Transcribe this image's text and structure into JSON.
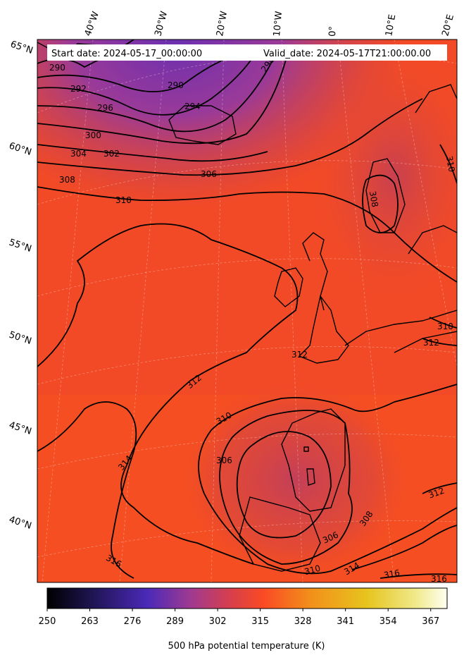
{
  "header": {
    "start_date": "Start date: 2024-05-17_00:00:00",
    "valid_date": "Valid_date: 2024-05-17T21:00:00.00"
  },
  "longitude_labels": [
    "40°W",
    "30°W",
    "20°W",
    "10°W",
    "0°",
    "10°E",
    "20°E"
  ],
  "latitude_labels": [
    "65°N",
    "60°N",
    "55°N",
    "50°N",
    "45°N",
    "40°N"
  ],
  "contour_labels": [
    "290",
    "292",
    "296",
    "300",
    "304",
    "308",
    "302",
    "306",
    "310",
    "290",
    "294",
    "298",
    "310",
    "308",
    "310",
    "312",
    "312",
    "310",
    "312",
    "306",
    "314",
    "316",
    "308",
    "306",
    "310",
    "314",
    "312",
    "316",
    "316"
  ],
  "colorbar": {
    "ticks": [
      "250",
      "263",
      "276",
      "289",
      "302",
      "315",
      "328",
      "341",
      "354",
      "367"
    ],
    "label": "500 hPa potential temperature (K)",
    "range": [
      250,
      372
    ],
    "colors": [
      "#000000",
      "#1e1450",
      "#4a2ab8",
      "#a03a90",
      "#d83f4a",
      "#fa4a25",
      "#f2901a",
      "#e7c41e",
      "#f0e98a",
      "#fffff0"
    ]
  },
  "colors": {
    "warm_field": "#f24a26",
    "cool_field": "#7a34a8",
    "contour": "#000000"
  }
}
